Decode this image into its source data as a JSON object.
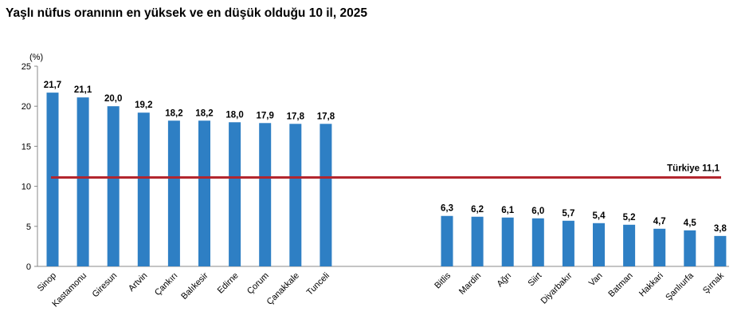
{
  "chart_data": {
    "type": "bar",
    "title": "Yaşlı nüfus oranının en yüksek ve en düşük olduğu 10 il, 2025",
    "ylabel": "(%)",
    "xlabel": "",
    "ylim": [
      0,
      25
    ],
    "yticks": [
      0,
      5,
      10,
      15,
      20,
      25
    ],
    "grid": false,
    "legend": "none",
    "bar_color": "#2e7fc4",
    "reference_color": "#b3262e",
    "groups": [
      {
        "categories": [
          "Sinop",
          "Kastamonu",
          "Giresun",
          "Artvin",
          "Çankırı",
          "Balıkesir",
          "Edirne",
          "Çorum",
          "Çanakkale",
          "Tunceli"
        ],
        "values": [
          21.7,
          21.1,
          20.0,
          19.2,
          18.2,
          18.2,
          18.0,
          17.9,
          17.8,
          17.8
        ],
        "value_labels": [
          "21,7",
          "21,1",
          "20,0",
          "19,2",
          "18,2",
          "18,2",
          "18,0",
          "17,9",
          "17,8",
          "17,8"
        ]
      },
      {
        "categories": [
          "Bitlis",
          "Mardin",
          "Ağrı",
          "Siirt",
          "Diyarbakır",
          "Van",
          "Batman",
          "Hakkari",
          "Şanlıurfa",
          "Şırnak"
        ],
        "values": [
          6.3,
          6.2,
          6.1,
          6.0,
          5.7,
          5.4,
          5.2,
          4.7,
          4.5,
          3.8
        ],
        "value_labels": [
          "6,3",
          "6,2",
          "6,1",
          "6,0",
          "5,7",
          "5,4",
          "5,2",
          "4,7",
          "4,5",
          "3,8"
        ]
      }
    ],
    "reference_line": {
      "label": "Türkiye",
      "value": 11.1,
      "value_label": "11,1"
    }
  }
}
